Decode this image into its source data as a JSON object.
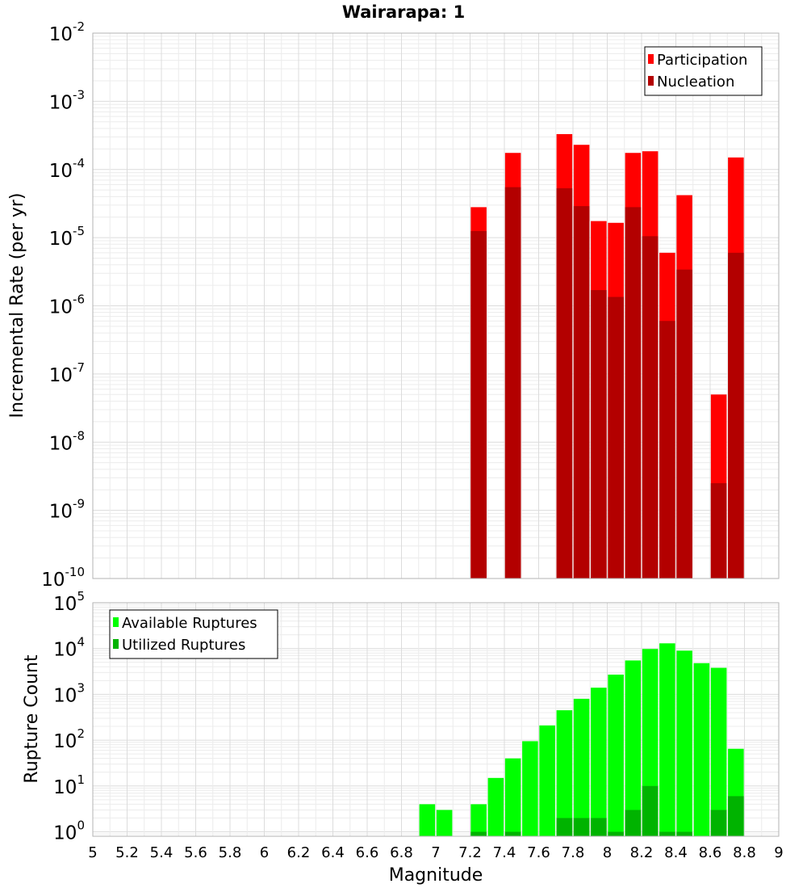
{
  "chart_data": {
    "type": "bar",
    "title": "Wairarapa: 1",
    "xlabel": "Magnitude",
    "xlim": [
      5,
      9
    ],
    "x_ticks": [
      "5",
      "5.2",
      "5.4",
      "5.6",
      "5.8",
      "6",
      "6.2",
      "6.4",
      "6.6",
      "6.8",
      "7",
      "7.2",
      "7.4",
      "7.6",
      "7.8",
      "8",
      "8.2",
      "8.4",
      "8.6",
      "8.8",
      "9"
    ],
    "grid": true,
    "panels": [
      {
        "ylabel": "Incremental Rate (per yr)",
        "yscale": "log",
        "ylim": [
          1e-10,
          0.01
        ],
        "y_ticks": [
          {
            "base": "10",
            "exp": "-10",
            "value": 1e-10
          },
          {
            "base": "10",
            "exp": "-9",
            "value": 1e-09
          },
          {
            "base": "10",
            "exp": "-8",
            "value": 1e-08
          },
          {
            "base": "10",
            "exp": "-7",
            "value": 1e-07
          },
          {
            "base": "10",
            "exp": "-6",
            "value": 1e-06
          },
          {
            "base": "10",
            "exp": "-5",
            "value": 1e-05
          },
          {
            "base": "10",
            "exp": "-4",
            "value": 0.0001
          },
          {
            "base": "10",
            "exp": "-3",
            "value": 0.001
          },
          {
            "base": "10",
            "exp": "-2",
            "value": 0.01
          }
        ],
        "legend_position": "top-right",
        "series": [
          {
            "name": "Participation",
            "color": "#ff0000",
            "x": [
              7.25,
              7.45,
              7.75,
              7.85,
              7.95,
              8.05,
              8.15,
              8.25,
              8.35,
              8.45,
              8.65,
              8.75
            ],
            "values": [
              2.8e-05,
              0.000175,
              0.00033,
              0.00023,
              1.75e-05,
              1.65e-05,
              0.000175,
              0.000185,
              6e-06,
              4.2e-05,
              5e-08,
              0.00015
            ]
          },
          {
            "name": "Nucleation",
            "color": "#b30000",
            "x": [
              7.25,
              7.45,
              7.75,
              7.85,
              7.95,
              8.05,
              8.15,
              8.25,
              8.35,
              8.45,
              8.65,
              8.75
            ],
            "values": [
              1.25e-05,
              5.5e-05,
              5.3e-05,
              2.9e-05,
              1.7e-06,
              1.35e-06,
              2.8e-05,
              1.05e-05,
              6e-07,
              3.4e-06,
              2.5e-09,
              6e-06
            ]
          }
        ]
      },
      {
        "ylabel": "Rupture Count",
        "yscale": "log",
        "ylim": [
          0.8,
          100000
        ],
        "y_ticks": [
          {
            "base": "10",
            "exp": "0",
            "value": 1
          },
          {
            "base": "10",
            "exp": "1",
            "value": 10
          },
          {
            "base": "10",
            "exp": "2",
            "value": 100
          },
          {
            "base": "10",
            "exp": "3",
            "value": 1000
          },
          {
            "base": "10",
            "exp": "4",
            "value": 10000
          },
          {
            "base": "10",
            "exp": "5",
            "value": 100000
          }
        ],
        "legend_position": "top-left",
        "series": [
          {
            "name": "Available Ruptures",
            "color": "#00ff00",
            "x": [
              6.95,
              7.05,
              7.25,
              7.35,
              7.45,
              7.55,
              7.65,
              7.75,
              7.85,
              7.95,
              8.05,
              8.15,
              8.25,
              8.35,
              8.45,
              8.55,
              8.65,
              8.75
            ],
            "values": [
              4,
              3,
              4,
              15,
              40,
              95,
              210,
              450,
              800,
              1400,
              2700,
              5500,
              9800,
              13000,
              9000,
              4800,
              3800,
              65
            ]
          },
          {
            "name": "Utilized Ruptures",
            "color": "#00b300",
            "x": [
              7.25,
              7.45,
              7.75,
              7.85,
              7.95,
              8.05,
              8.15,
              8.25,
              8.35,
              8.45,
              8.65,
              8.75
            ],
            "values": [
              1,
              1,
              2,
              2,
              2,
              1,
              3,
              10,
              1,
              1,
              3,
              6
            ]
          }
        ]
      }
    ]
  }
}
